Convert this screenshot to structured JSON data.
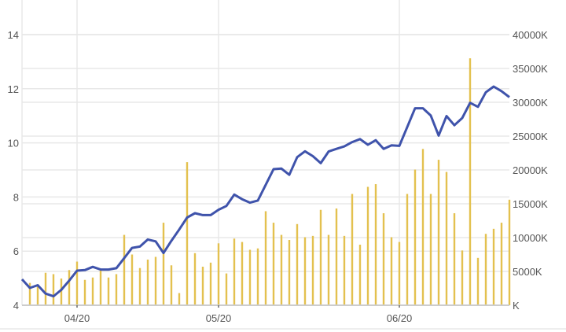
{
  "chart_data": {
    "type": "line+bar",
    "title": "",
    "xlabel": "",
    "ylabel_left": "",
    "ylabel_right": "",
    "grid": true,
    "legend": "none",
    "x_ticks": [
      {
        "index": 7,
        "label": "04/20"
      },
      {
        "index": 25,
        "label": "05/20"
      },
      {
        "index": 48,
        "label": "06/20"
      }
    ],
    "y_left": {
      "range": [
        4,
        14
      ],
      "ticks": [
        "4",
        "6",
        "8",
        "10",
        "12",
        "14"
      ],
      "tick_values": [
        4,
        6,
        8,
        10,
        12,
        14
      ]
    },
    "y_right": {
      "range": [
        0,
        40000
      ],
      "unit": "K",
      "ticks": [
        "K",
        "5000K",
        "10000K",
        "15000K",
        "20000K",
        "25000K",
        "30000K",
        "35000K",
        "40000K"
      ],
      "tick_values": [
        0,
        5000,
        10000,
        15000,
        20000,
        25000,
        30000,
        35000,
        40000
      ]
    },
    "series": [
      {
        "type": "line",
        "axis": "left",
        "color": "#3f53ab",
        "values": [
          4.96,
          4.64,
          4.74,
          4.43,
          4.33,
          4.57,
          4.91,
          5.28,
          5.3,
          5.42,
          5.32,
          5.32,
          5.37,
          5.74,
          6.12,
          6.17,
          6.43,
          6.36,
          5.93,
          6.38,
          6.8,
          7.24,
          7.4,
          7.33,
          7.33,
          7.53,
          7.67,
          8.09,
          7.92,
          7.79,
          7.87,
          8.45,
          9.03,
          9.05,
          8.82,
          9.47,
          9.69,
          9.51,
          9.25,
          9.68,
          9.78,
          9.87,
          10.03,
          10.14,
          9.93,
          10.1,
          9.78,
          9.91,
          9.89,
          10.58,
          11.28,
          11.28,
          11.01,
          10.27,
          10.99,
          10.65,
          10.92,
          11.48,
          11.33,
          11.87,
          12.08,
          11.91,
          11.69
        ]
      },
      {
        "type": "bar",
        "axis": "right",
        "color": "#e3c14f",
        "values": [
          null,
          3300,
          2950,
          4800,
          4600,
          3950,
          5200,
          6450,
          3750,
          4100,
          5200,
          4100,
          4600,
          10400,
          7500,
          5500,
          6750,
          7150,
          12200,
          5900,
          1800,
          21150,
          7700,
          5700,
          6300,
          9150,
          4700,
          9850,
          9350,
          8200,
          8400,
          13900,
          12200,
          10400,
          9650,
          12000,
          10050,
          10250,
          14100,
          10400,
          14300,
          10250,
          16450,
          8950,
          17500,
          17900,
          13600,
          10050,
          9350,
          16450,
          20050,
          23100,
          16450,
          21500,
          19700,
          13600,
          8100,
          36500,
          7000,
          10550,
          11300,
          12200,
          15600
        ]
      }
    ]
  }
}
